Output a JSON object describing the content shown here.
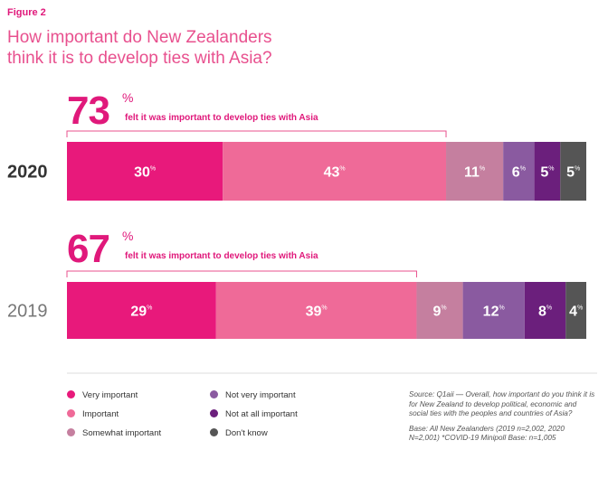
{
  "figure_label": "Figure 2",
  "title": "How important do New Zealanders think it is to develop ties with Asia?",
  "chart_data": {
    "type": "bar",
    "orientation": "horizontal",
    "stacked": true,
    "value_suffix": "%",
    "categories": [
      "2020",
      "2019"
    ],
    "series": [
      {
        "name": "Very important",
        "color": "#e8197b",
        "values": [
          30,
          29
        ]
      },
      {
        "name": "Important",
        "color": "#ef6a98",
        "values": [
          43,
          39
        ]
      },
      {
        "name": "Somewhat important",
        "color": "#c57f9f",
        "values": [
          11,
          9
        ]
      },
      {
        "name": "Not very important",
        "color": "#8a5aa0",
        "values": [
          6,
          12
        ]
      },
      {
        "name": "Not at all important",
        "color": "#6b1f7c",
        "values": [
          5,
          8
        ]
      },
      {
        "name": "Don't know",
        "color": "#555555",
        "values": [
          5,
          4
        ]
      }
    ],
    "annotations": [
      {
        "category": "2020",
        "value": "73",
        "unit": "%",
        "text": "felt it was important to develop ties with Asia"
      },
      {
        "category": "2019",
        "value": "67",
        "unit": "%",
        "text": "felt it was important to develop ties with Asia"
      }
    ]
  },
  "legend": [
    {
      "label": "Very important",
      "color": "#e8197b"
    },
    {
      "label": "Important",
      "color": "#ef6a98"
    },
    {
      "label": "Somewhat important",
      "color": "#c57f9f"
    },
    {
      "label": "Not very important",
      "color": "#8a5aa0"
    },
    {
      "label": "Not at all important",
      "color": "#6b1f7c"
    },
    {
      "label": "Don't know",
      "color": "#555555"
    }
  ],
  "source_note": "Source: Q1aii — Overall, how important do you think it is for New Zealand to develop political, economic and social ties with the peoples and countries of Asia?",
  "base_note": "Base: All New Zealanders (2019 n=2,002, 2020 N=2,001) *COVID-19 Minipoll Base: n=1,005"
}
